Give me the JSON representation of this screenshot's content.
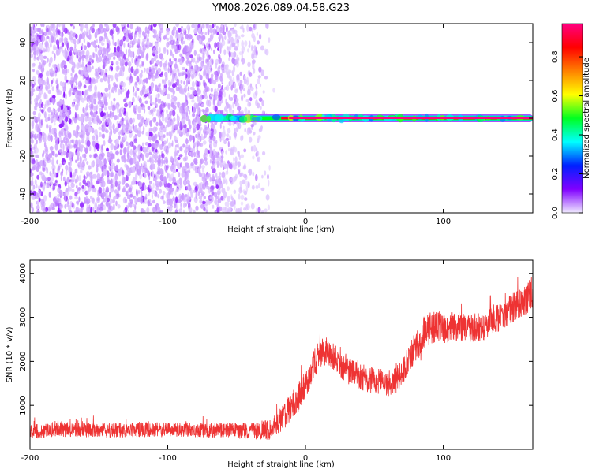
{
  "figure": {
    "title": "YM08.2026.089.04.58.G23"
  },
  "chart_data": [
    {
      "type": "heatmap",
      "xlabel": "Height of straight line (km)",
      "ylabel": "Frequency (Hz)",
      "xlim": [
        -200,
        165
      ],
      "ylim": [
        -50,
        50
      ],
      "x_ticks": [
        -200,
        -100,
        0,
        100
      ],
      "y_ticks": [
        -40,
        -20,
        0,
        20,
        40
      ],
      "x_tick_labels": [
        "-200",
        "-100",
        "0",
        "100"
      ],
      "y_tick_labels": [
        "-40",
        "-20",
        "0",
        "20",
        "40"
      ],
      "features": {
        "noise_region_x": [
          -200,
          -20
        ],
        "noise_dense_until_x": -60,
        "signal_line_freq_hz": 0,
        "signal_line_x_start": -75,
        "signal_line_x_end": 165,
        "signal_peak_value": 1.0
      },
      "colorbar": {
        "label": "Normalized spectral amplitude",
        "ticks": [
          0.0,
          0.2,
          0.4,
          0.6,
          0.8
        ],
        "tick_labels": [
          "0.0",
          "0.2",
          "0.4",
          "0.6",
          "0.8"
        ],
        "range": [
          0,
          0.97
        ],
        "colormap": [
          "#f0eaff",
          "#8000ff",
          "#0020ff",
          "#00ffff",
          "#00ff20",
          "#ffff00",
          "#ff8000",
          "#ff0000",
          "#ff0080"
        ]
      }
    },
    {
      "type": "line",
      "xlabel": "Height of straight line (km)",
      "ylabel": "SNR (10 * v/v)",
      "xlim": [
        -200,
        165
      ],
      "ylim": [
        0,
        4300
      ],
      "x_ticks": [
        -200,
        -100,
        0,
        100
      ],
      "y_ticks": [
        1000,
        2000,
        3000,
        4000
      ],
      "x_tick_labels": [
        "-200",
        "-100",
        "0",
        "100"
      ],
      "y_tick_labels": [
        "1000",
        "2000",
        "3000",
        "4000"
      ],
      "series": [
        {
          "color": "#ee3333",
          "trend_x": [
            -200,
            -180,
            -150,
            -120,
            -90,
            -60,
            -40,
            -25,
            -15,
            -5,
            0,
            5,
            10,
            15,
            20,
            25,
            30,
            40,
            50,
            60,
            65,
            70,
            75,
            80,
            85,
            90,
            95,
            100,
            110,
            120,
            130,
            140,
            150,
            160,
            165
          ],
          "trend_y": [
            400,
            460,
            430,
            450,
            440,
            430,
            420,
            450,
            750,
            1200,
            1500,
            1850,
            2150,
            2250,
            2150,
            1950,
            1800,
            1650,
            1550,
            1500,
            1550,
            1750,
            2050,
            2350,
            2600,
            2750,
            2800,
            2750,
            2800,
            2750,
            2800,
            3000,
            3200,
            3400,
            3600
          ],
          "spread_y": [
            170,
            170,
            170,
            170,
            170,
            170,
            190,
            240,
            300,
            340,
            340,
            330,
            330,
            330,
            330,
            320,
            310,
            300,
            300,
            300,
            300,
            300,
            320,
            340,
            360,
            360,
            360,
            360,
            340,
            330,
            330,
            330,
            340,
            360,
            380
          ]
        }
      ]
    }
  ]
}
